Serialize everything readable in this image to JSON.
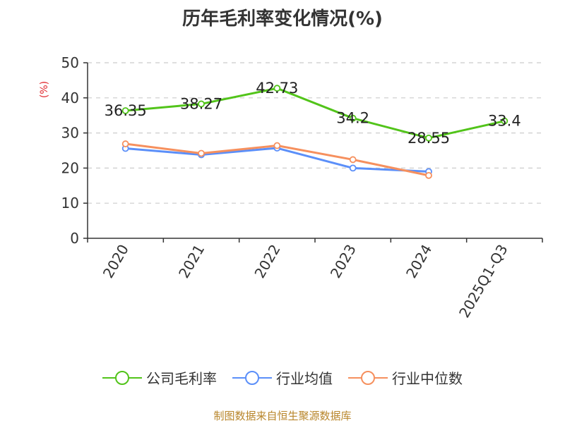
{
  "chart_data": {
    "type": "line",
    "title": "历年毛利率变化情况(%)",
    "ylabel": "(%)",
    "categories": [
      "2020",
      "2021",
      "2022",
      "2023",
      "2024",
      "2025Q1-Q3"
    ],
    "ylim": [
      0,
      50
    ],
    "yticks": [
      0,
      10,
      20,
      30,
      40,
      50
    ],
    "grid": true,
    "legend_position": "bottom",
    "series": [
      {
        "name": "公司毛利率",
        "color": "#52c41a",
        "values": [
          36.35,
          38.27,
          42.73,
          34.2,
          28.55,
          33.4
        ],
        "labels": [
          "36.35",
          "38.27",
          "42.73",
          "34.2",
          "28.55",
          "33.4"
        ]
      },
      {
        "name": "行业均值",
        "color": "#5b8ff9",
        "values": [
          25.6,
          23.8,
          25.7,
          20.0,
          19.0,
          null
        ]
      },
      {
        "name": "行业中位数",
        "color": "#f6905e",
        "values": [
          26.9,
          24.2,
          26.4,
          22.4,
          17.9,
          null
        ]
      }
    ]
  },
  "footer": {
    "source": "制图数据来自恒生聚源数据库"
  },
  "colors": {
    "ylabel": "#e0282e",
    "axis": "#333333",
    "grid": "#cccccc"
  }
}
